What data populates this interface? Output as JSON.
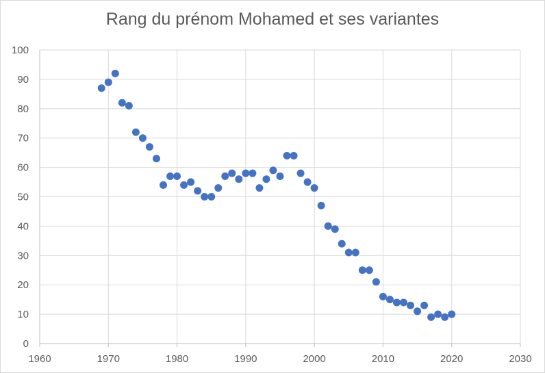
{
  "chart_data": {
    "type": "scatter",
    "title": "Rang du prénom Mohamed et ses variantes",
    "xlabel": "",
    "ylabel": "",
    "xlim": [
      1960,
      2030
    ],
    "ylim": [
      0,
      100
    ],
    "x_ticks": [
      "1960",
      "1970",
      "1980",
      "1990",
      "2000",
      "2010",
      "2020",
      "2030"
    ],
    "y_ticks": [
      "0",
      "10",
      "20",
      "30",
      "40",
      "50",
      "60",
      "70",
      "80",
      "90",
      "100"
    ],
    "grid": true,
    "legend": "none",
    "marker_color": "#4472c4",
    "points": [
      [
        1969,
        87
      ],
      [
        1970,
        89
      ],
      [
        1971,
        92
      ],
      [
        1972,
        82
      ],
      [
        1973,
        81
      ],
      [
        1974,
        72
      ],
      [
        1975,
        70
      ],
      [
        1976,
        67
      ],
      [
        1977,
        63
      ],
      [
        1978,
        54
      ],
      [
        1979,
        57
      ],
      [
        1980,
        57
      ],
      [
        1981,
        54
      ],
      [
        1982,
        55
      ],
      [
        1983,
        52
      ],
      [
        1984,
        50
      ],
      [
        1985,
        50
      ],
      [
        1986,
        53
      ],
      [
        1987,
        57
      ],
      [
        1988,
        58
      ],
      [
        1989,
        56
      ],
      [
        1990,
        58
      ],
      [
        1991,
        58
      ],
      [
        1992,
        53
      ],
      [
        1993,
        56
      ],
      [
        1994,
        59
      ],
      [
        1995,
        57
      ],
      [
        1996,
        64
      ],
      [
        1997,
        64
      ],
      [
        1998,
        58
      ],
      [
        1999,
        55
      ],
      [
        2000,
        53
      ],
      [
        2001,
        47
      ],
      [
        2002,
        40
      ],
      [
        2003,
        39
      ],
      [
        2004,
        34
      ],
      [
        2005,
        31
      ],
      [
        2006,
        31
      ],
      [
        2007,
        25
      ],
      [
        2008,
        25
      ],
      [
        2009,
        21
      ],
      [
        2010,
        16
      ],
      [
        2011,
        15
      ],
      [
        2012,
        14
      ],
      [
        2013,
        14
      ],
      [
        2014,
        13
      ],
      [
        2015,
        11
      ],
      [
        2016,
        13
      ],
      [
        2017,
        9
      ],
      [
        2018,
        10
      ],
      [
        2019,
        9
      ],
      [
        2020,
        10
      ]
    ]
  }
}
